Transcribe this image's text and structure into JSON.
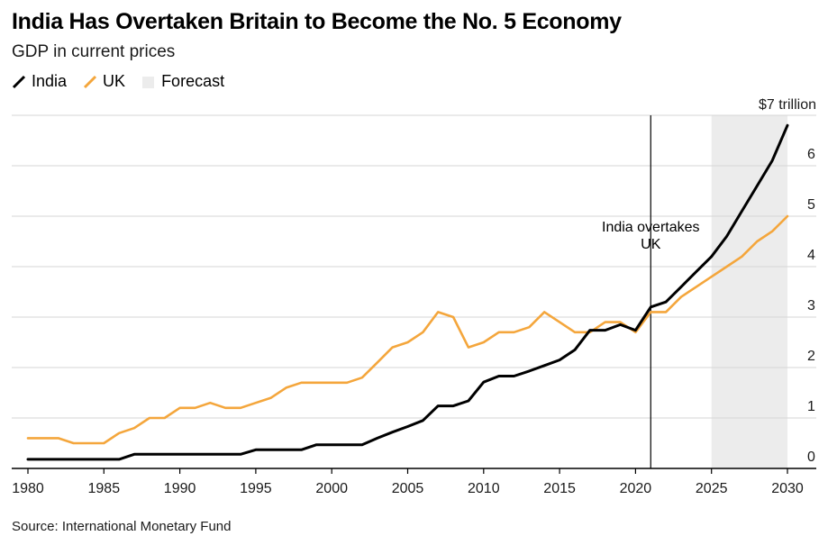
{
  "header": {
    "title": "India Has Overtaken Britain to Become the No. 5 Economy",
    "subtitle": "GDP in current prices"
  },
  "legend": {
    "india": "India",
    "uk": "UK",
    "forecast": "Forecast"
  },
  "colors": {
    "india": "#000000",
    "uk": "#f4a63c",
    "forecast_band": "#ececec",
    "grid": "#d6d6d6"
  },
  "source": "Source: International Monetary Fund",
  "chart_data": {
    "type": "line",
    "title": "India Has Overtaken Britain to Become the No. 5 Economy",
    "subtitle": "GDP in current prices",
    "x": [
      1980,
      1981,
      1982,
      1983,
      1984,
      1985,
      1986,
      1987,
      1988,
      1989,
      1990,
      1991,
      1992,
      1993,
      1994,
      1995,
      1996,
      1997,
      1998,
      1999,
      2000,
      2001,
      2002,
      2003,
      2004,
      2005,
      2006,
      2007,
      2008,
      2009,
      2010,
      2011,
      2012,
      2013,
      2014,
      2015,
      2016,
      2017,
      2018,
      2019,
      2020,
      2021,
      2022,
      2023,
      2024,
      2025,
      2026,
      2027,
      2028,
      2029,
      2030
    ],
    "series": [
      {
        "name": "India",
        "values": [
          0.18,
          0.18,
          0.18,
          0.18,
          0.18,
          0.18,
          0.18,
          0.28,
          0.28,
          0.28,
          0.28,
          0.28,
          0.28,
          0.28,
          0.28,
          0.37,
          0.37,
          0.37,
          0.37,
          0.47,
          0.47,
          0.47,
          0.47,
          0.6,
          0.72,
          0.83,
          0.95,
          1.24,
          1.24,
          1.34,
          1.71,
          1.83,
          1.83,
          1.93,
          2.04,
          2.15,
          2.35,
          2.74,
          2.74,
          2.85,
          2.74,
          3.2,
          3.3,
          3.6,
          3.9,
          4.2,
          4.6,
          5.1,
          5.6,
          6.1,
          6.8
        ]
      },
      {
        "name": "UK",
        "values": [
          0.6,
          0.6,
          0.6,
          0.5,
          0.5,
          0.5,
          0.7,
          0.8,
          1.0,
          1.0,
          1.2,
          1.2,
          1.3,
          1.2,
          1.2,
          1.3,
          1.4,
          1.6,
          1.7,
          1.7,
          1.7,
          1.7,
          1.8,
          2.1,
          2.4,
          2.5,
          2.7,
          3.1,
          3.0,
          2.4,
          2.5,
          2.7,
          2.7,
          2.8,
          3.1,
          2.9,
          2.7,
          2.7,
          2.9,
          2.9,
          2.7,
          3.1,
          3.1,
          3.4,
          3.6,
          3.8,
          4.0,
          4.2,
          4.5,
          4.7,
          5.0
        ]
      }
    ],
    "forecast_range": [
      2025,
      2030
    ],
    "xlim": [
      1980,
      2030
    ],
    "ylim": [
      0,
      7
    ],
    "yticks": [
      0,
      1,
      2,
      3,
      4,
      5,
      6,
      7
    ],
    "ytick_labels": [
      "0",
      "1",
      "2",
      "3",
      "4",
      "5",
      "6",
      "$7 trillion"
    ],
    "xticks": [
      1980,
      1985,
      1990,
      1995,
      2000,
      2005,
      2010,
      2015,
      2020,
      2025,
      2030
    ],
    "xtick_labels": [
      "1980",
      "1985",
      "1990",
      "1995",
      "2000",
      "2005",
      "2010",
      "2015",
      "2020",
      "2025",
      "2030"
    ],
    "annotation": {
      "text_line1": "India overtakes",
      "text_line2": "UK",
      "x": 2021
    },
    "grid": true,
    "legend_position": "top-left"
  }
}
